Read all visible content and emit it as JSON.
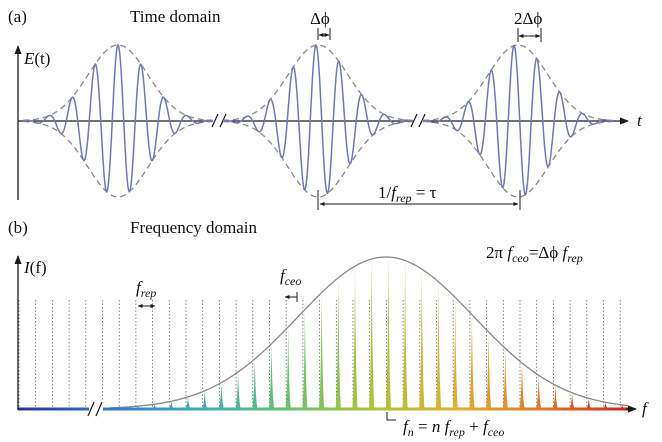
{
  "panel_a": {
    "label": "(a)",
    "title": "Time domain",
    "y_axis_label_main": "E",
    "y_axis_label_arg": "(t)",
    "x_axis_label": "t",
    "phase_label_1": "Δϕ",
    "phase_label_2": "2Δϕ",
    "period_prefix": "1/",
    "period_f": "f",
    "period_sub": "rep",
    "period_suffix": " = τ"
  },
  "panel_b": {
    "label": "(b)",
    "title": "Frequency domain",
    "y_axis_label_main": "I",
    "y_axis_label_arg": "(f)",
    "x_axis_label": "f",
    "frep_f": "f",
    "frep_sub": "rep",
    "fceo_f": "f",
    "fceo_sub": "ceo",
    "eq_2pi": "2π",
    "eq_f": "f",
    "eq_ceo": "ceo",
    "eq_mid": "=Δϕ",
    "eq_f2": "f",
    "eq_rep": "rep",
    "fn_f": "f",
    "fn_n": "n",
    "fn_eq": " = ",
    "fn_n2": "n",
    "fn_f2": "f",
    "fn_rep": "rep",
    "fn_plus": " + ",
    "fn_f3": "f",
    "fn_ceo": "ceo"
  },
  "colors": {
    "field_line": "#6f78b8",
    "envelope": "#8a8a8a",
    "axis": "#1a1a1a",
    "spectrum_gradient": [
      "#2a2a9a",
      "#2f6fd0",
      "#3aa7c0",
      "#5fbf7a",
      "#a8c43c",
      "#e0b030",
      "#e07a2a",
      "#c8281e"
    ]
  }
}
